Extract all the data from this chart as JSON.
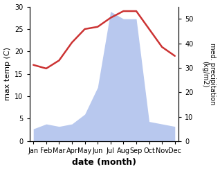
{
  "months": [
    "Jan",
    "Feb",
    "Mar",
    "Apr",
    "May",
    "Jun",
    "Jul",
    "Aug",
    "Sep",
    "Oct",
    "Nov",
    "Dec"
  ],
  "temperature": [
    17.0,
    16.2,
    18.0,
    22.0,
    25.0,
    25.5,
    27.5,
    29.0,
    29.0,
    25.0,
    21.0,
    19.0
  ],
  "precipitation": [
    5.0,
    7.0,
    6.0,
    7.0,
    11.0,
    22.0,
    53.0,
    50.0,
    50.0,
    8.0,
    7.0,
    6.0
  ],
  "temp_color": "#cc3333",
  "precip_color": "#b8c8ee",
  "temp_ylim": [
    0,
    30
  ],
  "precip_ylim": [
    0,
    55
  ],
  "temp_yticks": [
    0,
    5,
    10,
    15,
    20,
    25,
    30
  ],
  "precip_yticks": [
    0,
    10,
    20,
    30,
    40,
    50
  ],
  "ylabel_left": "max temp (C)",
  "ylabel_right": "med. precipitation\n(kg/m2)",
  "xlabel": "date (month)",
  "figsize": [
    3.18,
    2.47
  ],
  "dpi": 100
}
